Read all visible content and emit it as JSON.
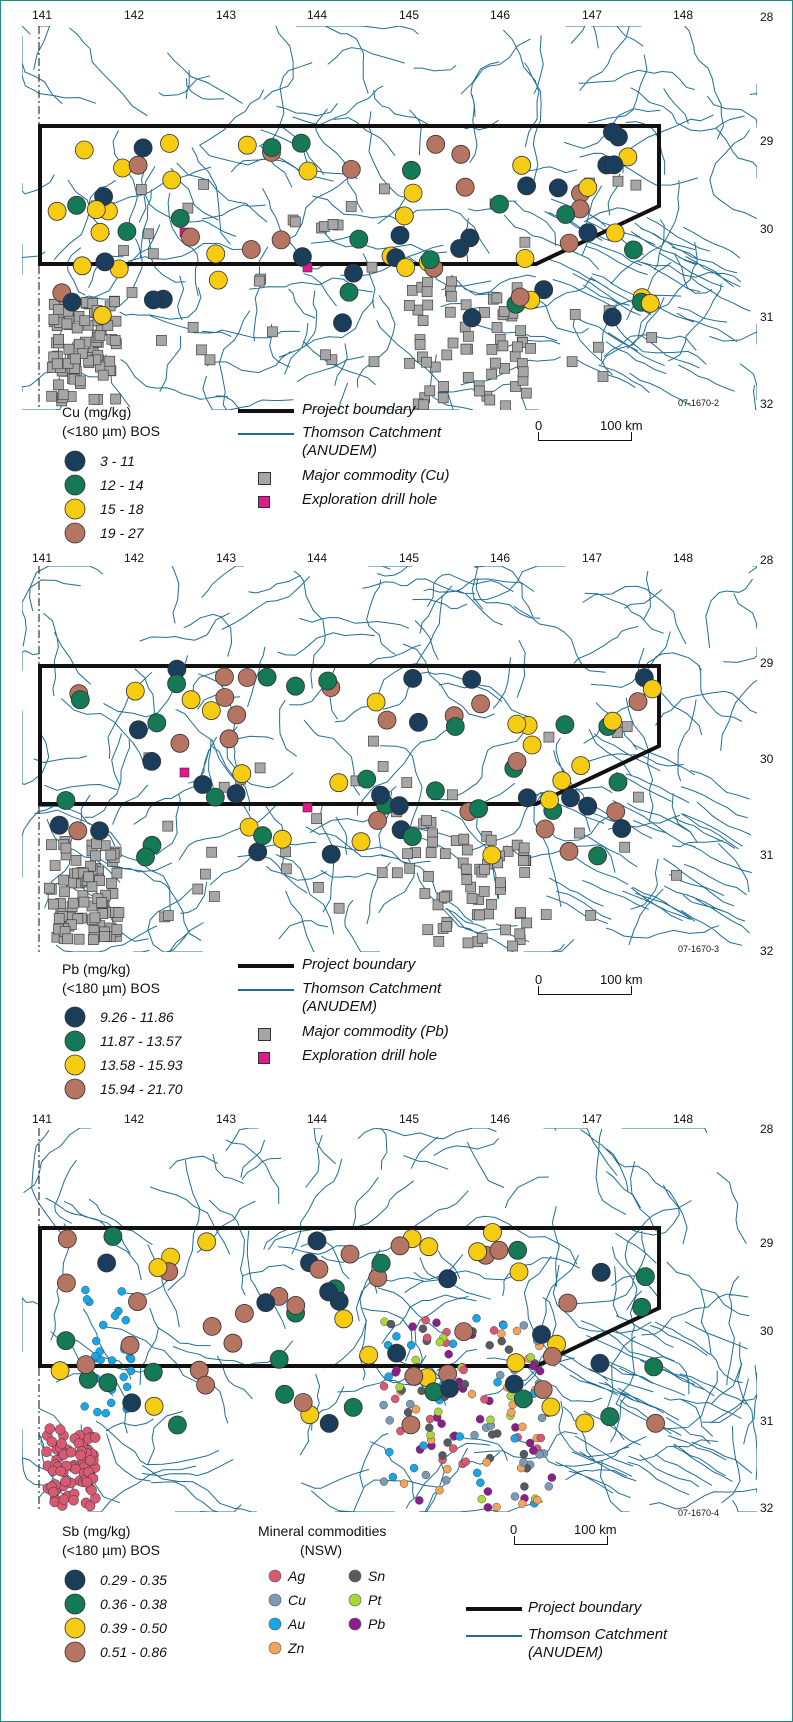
{
  "colors": {
    "river": "#1f6e96",
    "boundary": "#111111",
    "dark_navy": "#1a3d5c",
    "green": "#137a55",
    "yellow": "#f6cc12",
    "brown": "#b57562",
    "gray": "#a6a6a6",
    "magenta": "#e0188a",
    "frame": "#1f8a86"
  },
  "icons": {
    "river": "river-network",
    "boundary": "project-boundary-polygon",
    "point": "circle-marker",
    "mine": "square-marker"
  },
  "panels": [
    {
      "lon_labels": [
        "141",
        "142",
        "143",
        "144",
        "145",
        "146",
        "147",
        "148"
      ],
      "lat_labels": [
        "28",
        "29",
        "30",
        "31",
        "32"
      ],
      "figure_id": "07-1670-2",
      "legend_title": [
        "Cu (mg/kg)",
        "(<180 µm) BOS"
      ],
      "classes": [
        {
          "label": "3 - 11",
          "color": "dark_navy"
        },
        {
          "label": "12 - 14",
          "color": "green"
        },
        {
          "label": "15 - 18",
          "color": "yellow"
        },
        {
          "label": "19 - 27",
          "color": "brown"
        }
      ],
      "line_legend": [
        {
          "label": "Project boundary",
          "style": "boundary"
        },
        {
          "label": "Thomson Catchment",
          "label2": "(ANUDEM)",
          "style": "river"
        }
      ],
      "symbol_legend": [
        {
          "label": "Major commodity (Cu)",
          "color": "gray"
        },
        {
          "label": "Exploration drill hole",
          "color": "magenta"
        }
      ],
      "scale": {
        "start": "0",
        "end": "100 km"
      }
    },
    {
      "lon_labels": [
        "141",
        "142",
        "143",
        "144",
        "145",
        "146",
        "147",
        "148"
      ],
      "lat_labels": [
        "28",
        "29",
        "30",
        "31",
        "32"
      ],
      "figure_id": "07-1670-3",
      "legend_title": [
        "Pb (mg/kg)",
        "(<180 µm) BOS"
      ],
      "classes": [
        {
          "label": "9.26 - 11.86",
          "color": "dark_navy"
        },
        {
          "label": "11.87 - 13.57",
          "color": "green"
        },
        {
          "label": "13.58 - 15.93",
          "color": "yellow"
        },
        {
          "label": "15.94 - 21.70",
          "color": "brown"
        }
      ],
      "line_legend": [
        {
          "label": "Project boundary",
          "style": "boundary"
        },
        {
          "label": "Thomson Catchment",
          "label2": "(ANUDEM)",
          "style": "river"
        }
      ],
      "symbol_legend": [
        {
          "label": "Major commodity (Pb)",
          "color": "gray"
        },
        {
          "label": "Exploration drill hole",
          "color": "magenta"
        }
      ],
      "scale": {
        "start": "0",
        "end": "100 km"
      }
    },
    {
      "lon_labels": [
        "141",
        "142",
        "143",
        "144",
        "145",
        "146",
        "147",
        "148"
      ],
      "lat_labels": [
        "28",
        "29",
        "30",
        "31",
        "32"
      ],
      "figure_id": "07-1670-4",
      "legend_title": [
        "Sb (mg/kg)",
        "(<180 µm) BOS"
      ],
      "classes": [
        {
          "label": "0.29 - 0.35",
          "color": "dark_navy"
        },
        {
          "label": "0.36 - 0.38",
          "color": "green"
        },
        {
          "label": "0.39 - 0.50",
          "color": "yellow"
        },
        {
          "label": "0.51 - 0.86",
          "color": "brown"
        }
      ],
      "commodities_title": [
        "Mineral commodities",
        "(NSW)"
      ],
      "commodities": [
        {
          "label": "Ag",
          "color": "#d85a72"
        },
        {
          "label": "Sn",
          "color": "#555b5e"
        },
        {
          "label": "Cu",
          "color": "#7c9ab5"
        },
        {
          "label": "Pt",
          "color": "#a9d63a"
        },
        {
          "label": "Au",
          "color": "#1aa6e6"
        },
        {
          "label": "Pb",
          "color": "#8a1f8c"
        },
        {
          "label": "Zn",
          "color": "#f5a35a"
        }
      ],
      "line_legend": [
        {
          "label": "Project boundary",
          "style": "boundary"
        },
        {
          "label": "Thomson Catchment",
          "label2": "(ANUDEM)",
          "style": "river"
        }
      ],
      "scale": {
        "start": "0",
        "end": "100 km"
      }
    }
  ]
}
